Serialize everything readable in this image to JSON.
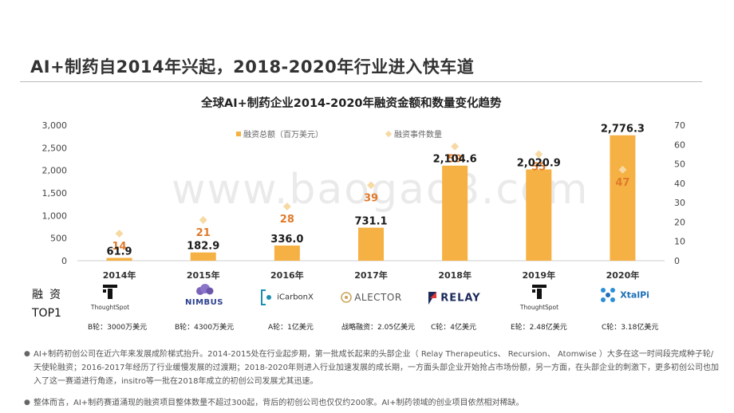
{
  "slide": {
    "title": "AI+制药自2014年兴起，2018-2020年行业进入快车道",
    "watermark": "www.baogao8.com"
  },
  "chart_data": {
    "type": "bar",
    "title": "全球AI+制药企业2014-2020年融资金额和数量变化趋势",
    "categories": [
      "2014年",
      "2015年",
      "2016年",
      "2017年",
      "2018年",
      "2019年",
      "2020年"
    ],
    "series": [
      {
        "name": "融资总额（百万美元）",
        "type": "bar",
        "axis": "left",
        "color": "#f5b143",
        "values": [
          61.9,
          182.9,
          336.0,
          731.1,
          2104.6,
          2020.9,
          2776.3
        ],
        "labels": [
          "61.9",
          "182.9",
          "336.0",
          "731.1",
          "2,104.6",
          "2,020.9",
          "2,776.3"
        ]
      },
      {
        "name": "融资事件数量",
        "type": "scatter",
        "axis": "right",
        "color": "#f7d9a4",
        "label_color": "#e07a2b",
        "values": [
          14,
          21,
          28,
          39,
          59,
          55,
          47
        ],
        "labels": [
          "14",
          "21",
          "28",
          "39",
          "59",
          "55",
          "47"
        ]
      }
    ],
    "y_left": {
      "min": 0,
      "max": 3000,
      "ticks": [
        "0",
        "500",
        "1,000",
        "1,500",
        "2,000",
        "2,500",
        "3,000"
      ]
    },
    "y_right": {
      "min": 0,
      "max": 70,
      "ticks": [
        "0",
        "10",
        "20",
        "30",
        "40",
        "50",
        "60",
        "70"
      ]
    },
    "grid": false,
    "legend_position": "top"
  },
  "top1": {
    "label_line1": "融资",
    "label_line2": "TOP1",
    "companies": [
      {
        "logo": "ThoughtSpot",
        "round": "B轮：3000万美元"
      },
      {
        "logo": "NIMBUS",
        "round": "B轮：4300万美元"
      },
      {
        "logo": "iCarbonX",
        "round": "A轮：1亿美元"
      },
      {
        "logo": "ALECTOR",
        "round": "战略融资：2.05亿美元"
      },
      {
        "logo": "RELAY",
        "round": "C轮：4亿美元"
      },
      {
        "logo": "ThoughtSpot",
        "round": "E轮：2.48亿美元"
      },
      {
        "logo": "XtalPi",
        "round": "C轮：3.18亿美元"
      }
    ]
  },
  "notes": [
    "AI+制药初创公司在近六年来发展成阶梯式抬升。2014-2015处在行业起步期，第一批成长起来的头部企业（ Relay Therapeutics、 Recursion、 Atomwise ）大多在这一时间段完成种子轮/天使轮融资；2016-2017年经历了行业缓慢发展的过渡期；2018-2020年则进入行业加速发展的成长期，一方面头部企业开始抢占市场份额，另一方面，在头部企业的刺激下，更多初创公司也加入了这一赛道进行角逐，insitro等一批在2018年成立的初创公司发展尤其迅速。",
    "整体而言，AI+制药赛道涌现的融资项目整体数量不超过300起，背后的初创公司也仅仅约200家。AI+制药领域的创业项目依然相对稀缺。"
  ]
}
